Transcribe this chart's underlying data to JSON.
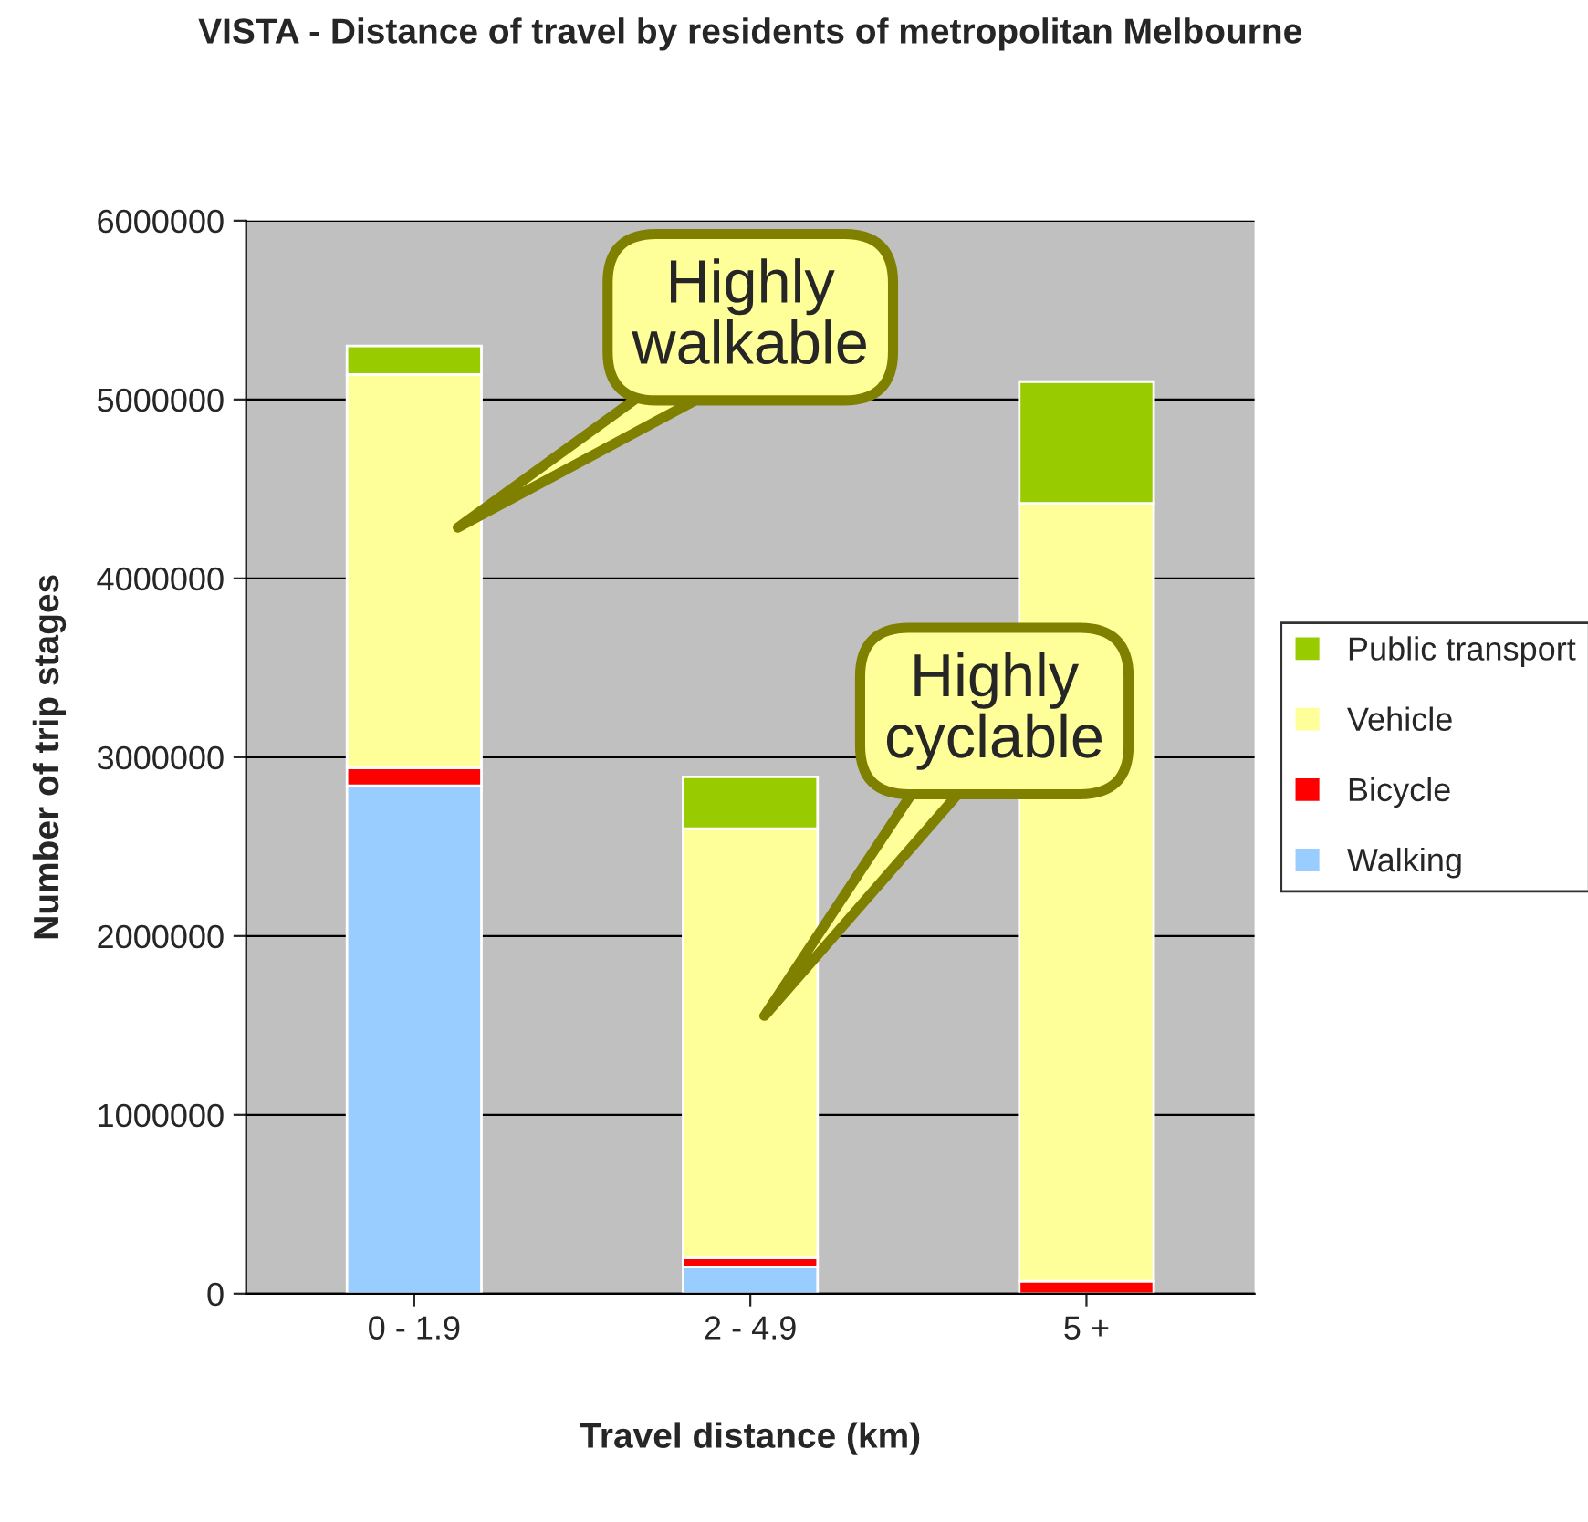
{
  "chart_data": {
    "type": "bar",
    "stacked": true,
    "title": "VISTA - Distance of travel by residents of metropolitan Melbourne",
    "xlabel": "Travel distance (km)",
    "ylabel": "Number of trip stages",
    "categories": [
      "0 - 1.9",
      "2 - 4.9",
      "5 +"
    ],
    "series": [
      {
        "name": "Walking",
        "color": "#99ccff",
        "values": [
          2840000,
          150000,
          0
        ]
      },
      {
        "name": "Bicycle",
        "color": "#ff0000",
        "values": [
          100000,
          50000,
          70000
        ]
      },
      {
        "name": "Vehicle",
        "color": "#ffff99",
        "values": [
          2200000,
          2400000,
          4350000
        ]
      },
      {
        "name": "Public transport",
        "color": "#99cc00",
        "values": [
          160000,
          290000,
          680000
        ]
      }
    ],
    "ylim": [
      0,
      6000000
    ],
    "yticks": [
      0,
      1000000,
      2000000,
      3000000,
      4000000,
      5000000,
      6000000
    ],
    "grid": "y",
    "legend": "right",
    "annotations": [
      "Highly\nwalkable",
      "Highly\ncyclable"
    ]
  }
}
